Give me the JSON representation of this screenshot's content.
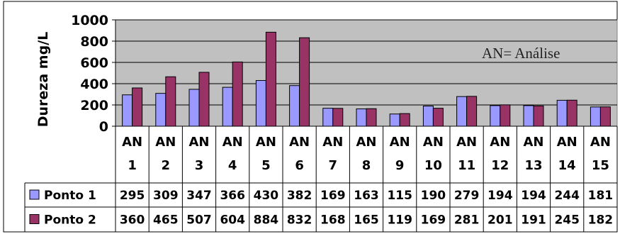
{
  "chart_data": {
    "type": "bar",
    "title": "",
    "xlabel": "",
    "ylabel": "Dureza mg/L",
    "ylim": [
      0,
      1000
    ],
    "yticks": [
      "0",
      "200",
      "400",
      "600",
      "800",
      "1000"
    ],
    "grid": true,
    "legend": "data-table",
    "annotation": "AN= Análise",
    "categories": [
      [
        "AN",
        "1"
      ],
      [
        "AN",
        "2"
      ],
      [
        "AN",
        "3"
      ],
      [
        "AN",
        "4"
      ],
      [
        "AN",
        "5"
      ],
      [
        "AN",
        "6"
      ],
      [
        "AN",
        "7"
      ],
      [
        "AN",
        "8"
      ],
      [
        "AN",
        "9"
      ],
      [
        "AN",
        "10"
      ],
      [
        "AN",
        "11"
      ],
      [
        "AN",
        "12"
      ],
      [
        "AN",
        "13"
      ],
      [
        "AN",
        "14"
      ],
      [
        "AN",
        "15"
      ]
    ],
    "series": [
      {
        "name": "Ponto 1",
        "color": "#9999ff",
        "values": [
          295,
          309,
          347,
          366,
          430,
          382,
          169,
          163,
          115,
          190,
          279,
          194,
          194,
          244,
          181
        ]
      },
      {
        "name": "Ponto 2",
        "color": "#993366",
        "values": [
          360,
          465,
          507,
          604,
          884,
          832,
          168,
          165,
          119,
          169,
          281,
          201,
          191,
          245,
          182
        ]
      }
    ],
    "plot_background": "#c0c0c0"
  }
}
